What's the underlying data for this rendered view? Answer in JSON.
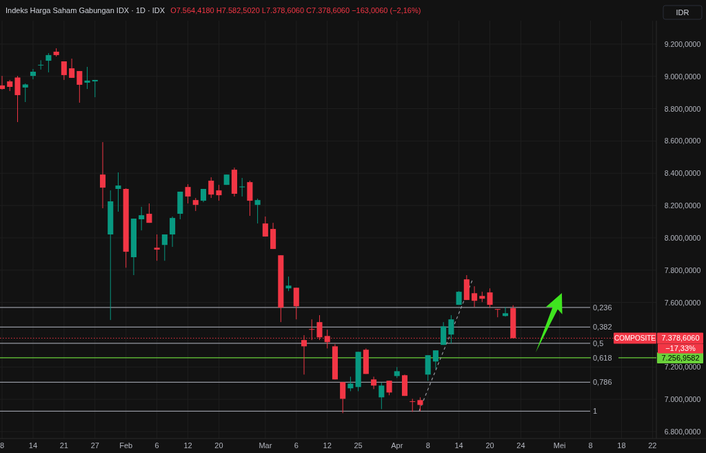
{
  "chart_data": {
    "type": "candlestick",
    "title": "Indeks Harga Saham Gabungan IDX · 1D · IDX",
    "subtitle": "O7.564,4180 H7.582,5020 L7.378,6060 C7.378,6060 −163,0060 (−2,16%)",
    "categories": [
      "8",
      null,
      null,
      null,
      "14",
      null,
      null,
      null,
      "21",
      null,
      null,
      null,
      "27",
      null,
      null,
      null,
      "Feb",
      null,
      null,
      null,
      "6",
      null,
      null,
      null,
      "12",
      null,
      null,
      null,
      "20",
      null,
      null,
      null,
      null,
      null,
      "Mar",
      null,
      null,
      null,
      "6",
      null,
      null,
      null,
      "12",
      null,
      null,
      null,
      "25",
      null,
      null,
      null,
      null,
      "Apr",
      null,
      null,
      null,
      "8",
      null,
      null,
      null,
      "14",
      null,
      null,
      null,
      "20",
      null,
      null,
      null,
      "24",
      null,
      null,
      null,
      null,
      "Mei",
      null,
      null,
      null,
      "8",
      null,
      null,
      null,
      "18",
      null,
      null,
      null,
      "22"
    ],
    "ohlc": [
      [
        8944,
        9003,
        8918,
        8922
      ],
      [
        8969,
        8978,
        8909,
        8935
      ],
      [
        8993,
        9003,
        8717,
        8884
      ],
      [
        8931,
        8956,
        8841,
        8950
      ],
      [
        9003,
        9046,
        8982,
        9029
      ],
      [
        9070,
        9100,
        9042,
        9072
      ],
      [
        9097,
        9144,
        9025,
        9132
      ],
      [
        9153,
        9174,
        9123,
        9132
      ],
      [
        9093,
        9093,
        8978,
        9008
      ],
      [
        9050,
        9110,
        8991,
        8991
      ],
      [
        9033,
        9033,
        8837,
        8948
      ],
      [
        8961,
        9059,
        8922,
        8974
      ],
      [
        8969,
        8978,
        8871,
        8978
      ],
      [
        8392,
        8593,
        8183,
        8311
      ],
      [
        8021,
        8294,
        7491,
        8226
      ],
      [
        8303,
        8405,
        8162,
        8324
      ],
      [
        8303,
        8307,
        7815,
        7914
      ],
      [
        7880,
        8119,
        7769,
        8119
      ],
      [
        8115,
        8192,
        8046,
        8140
      ],
      [
        8149,
        8213,
        8093,
        8093
      ],
      [
        7939,
        8021,
        7858,
        7927
      ],
      [
        7956,
        8021,
        7858,
        8021
      ],
      [
        8021,
        8132,
        7944,
        8123
      ],
      [
        8149,
        8286,
        8115,
        8286
      ],
      [
        8315,
        8332,
        8213,
        8256
      ],
      [
        8234,
        8247,
        8166,
        8204
      ],
      [
        8230,
        8303,
        8221,
        8303
      ],
      [
        8354,
        8375,
        8247,
        8268
      ],
      [
        8294,
        8328,
        8230,
        8264
      ],
      [
        8328,
        8392,
        8328,
        8392
      ],
      [
        8422,
        8435,
        8256,
        8273
      ],
      [
        8313,
        8371,
        8256,
        8318
      ],
      [
        8345,
        8354,
        8136,
        8230
      ],
      [
        8204,
        8243,
        8089,
        8234
      ],
      [
        8089,
        8132,
        8008,
        8008
      ],
      [
        8055,
        8093,
        7931,
        7931
      ],
      [
        7892,
        7892,
        7478,
        7568
      ],
      [
        7687,
        7760,
        7670,
        7704
      ],
      [
        7691,
        7691,
        7495,
        7576
      ],
      [
        7367,
        7397,
        7153,
        7328
      ],
      [
        7435,
        7495,
        7367,
        7433
      ],
      [
        7478,
        7521,
        7367,
        7384
      ],
      [
        7392,
        7431,
        7315,
        7354
      ],
      [
        7328,
        7341,
        7123,
        7123
      ],
      [
        7106,
        7106,
        6914,
        7003
      ],
      [
        7068,
        7140,
        7050,
        7097
      ],
      [
        7076,
        7294,
        7050,
        7294
      ],
      [
        7307,
        7315,
        7157,
        7157
      ],
      [
        7123,
        7140,
        7063,
        7085
      ],
      [
        7012,
        7102,
        6939,
        7085
      ],
      [
        7115,
        7115,
        7025,
        7042
      ],
      [
        7144,
        7200,
        7132,
        7174
      ],
      [
        7149,
        7153,
        7021,
        7021
      ],
      [
        6988,
        7003,
        6922,
        6984
      ],
      [
        6995,
        7012,
        6926,
        6965
      ],
      [
        7153,
        7273,
        7115,
        7273
      ],
      [
        7234,
        7303,
        7187,
        7303
      ],
      [
        7337,
        7478,
        7337,
        7452
      ],
      [
        7401,
        7521,
        7345,
        7495
      ],
      [
        7585,
        7670,
        7585,
        7666
      ],
      [
        7743,
        7769,
        7615,
        7615
      ],
      [
        7657,
        7700,
        7572,
        7610
      ],
      [
        7640,
        7666,
        7602,
        7623
      ],
      [
        7662,
        7687,
        7568,
        7585
      ],
      [
        7559,
        7559,
        7508,
        7555
      ],
      [
        7516,
        7572,
        7512,
        7533
      ],
      [
        7564.418,
        7582.502,
        7378.606,
        7378.606
      ],
      null,
      null,
      null,
      null,
      null,
      null,
      null,
      null,
      null,
      null,
      null,
      null,
      null,
      null,
      null,
      null,
      null,
      null
    ],
    "colors": [
      "#f23645",
      "#f23645",
      "#f23645",
      "#089981",
      "#089981",
      "#089981",
      "#089981",
      "#f23645",
      "#f23645",
      "#f23645",
      "#f23645",
      "#089981",
      "#089981",
      "#f23645",
      "#089981",
      "#089981",
      "#f23645",
      "#089981",
      "#089981",
      "#f23645",
      "#f23645",
      "#089981",
      "#089981",
      "#089981",
      "#f23645",
      "#f23645",
      "#089981",
      "#f23645",
      "#f23645",
      "#089981",
      "#f23645",
      "#089981",
      "#f23645",
      "#089981",
      "#f23645",
      "#f23645",
      "#f23645",
      "#089981",
      "#f23645",
      "#f23645",
      "#f23645",
      "#f23645",
      "#f23645",
      "#f23645",
      "#f23645",
      "#089981",
      "#089981",
      "#f23645",
      "#f23645",
      "#089981",
      "#f23645",
      "#089981",
      "#f23645",
      "#f23645",
      "#f23645",
      "#089981",
      "#089981",
      "#089981",
      "#089981",
      "#089981",
      "#f23645",
      "#f23645",
      "#f23645",
      "#f23645",
      "#f23645",
      "#089981",
      "#f23645",
      null,
      null,
      null,
      null,
      null,
      null,
      null,
      null,
      null,
      null,
      null,
      null,
      null,
      null,
      null,
      null,
      null,
      null
    ],
    "ylim": [
      6757,
      9345
    ],
    "yticks": [
      {
        "value": 6800,
        "label": "6.800,0000"
      },
      {
        "value": 7000,
        "label": "7.000,0000"
      },
      {
        "value": 7200,
        "label": "7.200,0000"
      },
      {
        "value": 7600,
        "label": "7.600,0000"
      },
      {
        "value": 7800,
        "label": "7.800,0000"
      },
      {
        "value": 8000,
        "label": "8.000,0000"
      },
      {
        "value": 8200,
        "label": "8.200,0000"
      },
      {
        "value": 8400,
        "label": "8.400,0000"
      },
      {
        "value": 8600,
        "label": "8.600,0000"
      },
      {
        "value": 8800,
        "label": "8.800,0000"
      },
      {
        "value": 9000,
        "label": "9.000,0000"
      },
      {
        "value": 9200,
        "label": "9.200,0000"
      }
    ],
    "grid": true,
    "ref_lines": [
      {
        "axis": "y",
        "value": 7569,
        "color": "#9598a1"
      },
      {
        "axis": "y",
        "value": 7447,
        "color": "#9598a1"
      },
      {
        "axis": "y",
        "value": 7347,
        "color": "#9598a1"
      },
      {
        "axis": "y",
        "value": 7256.9582,
        "label": "7.256,9582",
        "color": "#6ad13a"
      },
      {
        "axis": "y",
        "value": 7106,
        "color": "#9598a1"
      },
      {
        "axis": "y",
        "value": 6926,
        "color": "#9598a1"
      },
      {
        "axis": "y",
        "value": 7378.606,
        "label": "7.378,6060",
        "color": "#f23645",
        "line_style": "dotted"
      }
    ],
    "annotations": [
      "IDR",
      "0,236",
      "0,382",
      "0,5",
      "0,618",
      "0,786",
      "1",
      "COMPOSITE",
      "−17,33%"
    ]
  }
}
